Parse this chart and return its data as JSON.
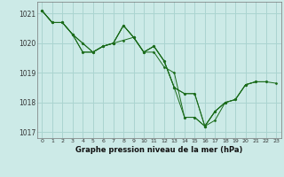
{
  "title": "Graphe pression niveau de la mer (hPa)",
  "bg_color": "#cceae7",
  "grid_color": "#aad4d0",
  "line_color": "#1a6b1a",
  "marker_color": "#1a6b1a",
  "xlim": [
    -0.5,
    23.5
  ],
  "ylim": [
    1016.8,
    1021.4
  ],
  "yticks": [
    1017,
    1018,
    1019,
    1020,
    1021
  ],
  "xticks": [
    0,
    1,
    2,
    3,
    4,
    5,
    6,
    7,
    8,
    9,
    10,
    11,
    12,
    13,
    14,
    15,
    16,
    17,
    18,
    19,
    20,
    21,
    22,
    23
  ],
  "series": [
    [
      1021.1,
      1020.7,
      1020.7,
      1020.3,
      1019.7,
      1019.7,
      1019.9,
      1020.0,
      1020.1,
      1020.2,
      1019.7,
      1019.7,
      1019.2,
      1019.0,
      1017.5,
      1017.5,
      1017.2,
      1017.4,
      1018.0,
      null,
      null,
      null,
      null,
      null
    ],
    [
      1021.1,
      1020.7,
      1020.7,
      1020.3,
      1019.7,
      1019.7,
      1019.9,
      1020.0,
      1020.6,
      1020.2,
      1019.7,
      1019.9,
      1019.4,
      1018.5,
      1017.5,
      1017.5,
      1017.2,
      1017.7,
      1018.0,
      1018.1,
      1018.6,
      1018.7,
      null,
      null
    ],
    [
      1021.1,
      1020.7,
      1020.7,
      1020.3,
      1020.0,
      1019.7,
      1019.9,
      1020.0,
      1020.6,
      1020.2,
      1019.7,
      1019.9,
      1019.4,
      1018.5,
      1018.3,
      1018.3,
      1017.2,
      1017.7,
      1018.0,
      1018.1,
      1018.6,
      1018.7,
      1018.7,
      null
    ],
    [
      1021.1,
      1020.7,
      1020.7,
      1020.3,
      1020.0,
      1019.7,
      1019.9,
      1020.0,
      1020.6,
      1020.2,
      1019.7,
      1019.9,
      1019.4,
      1018.5,
      1018.3,
      1018.3,
      1017.2,
      1017.7,
      1018.0,
      1018.1,
      1018.6,
      1018.7,
      1018.7,
      1018.65
    ]
  ]
}
